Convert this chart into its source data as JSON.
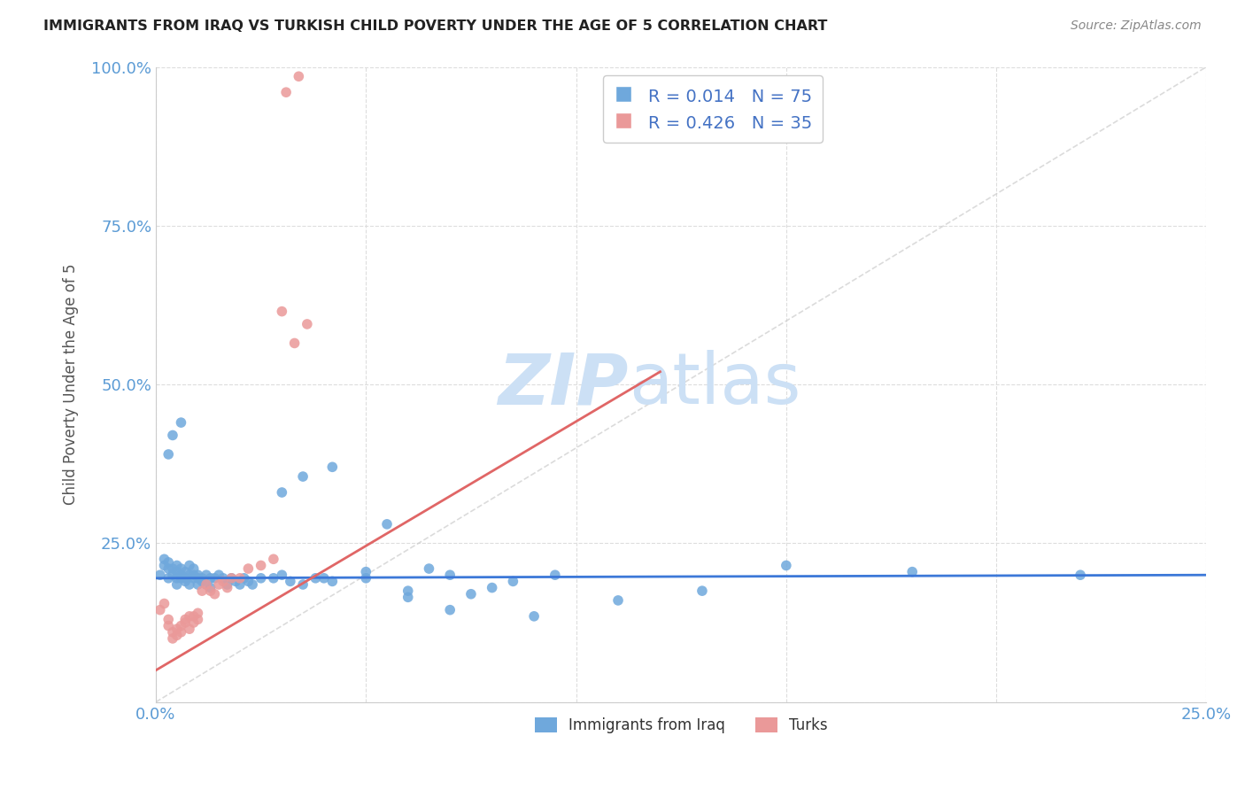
{
  "title": "IMMIGRANTS FROM IRAQ VS TURKISH CHILD POVERTY UNDER THE AGE OF 5 CORRELATION CHART",
  "source": "Source: ZipAtlas.com",
  "ylabel": "Child Poverty Under the Age of 5",
  "xlim": [
    0.0,
    0.25
  ],
  "ylim": [
    0.0,
    1.0
  ],
  "x_ticks": [
    0.0,
    0.25
  ],
  "x_tick_labels": [
    "0.0%",
    "25.0%"
  ],
  "y_ticks": [
    0.0,
    0.25,
    0.5,
    0.75,
    1.0
  ],
  "y_tick_labels": [
    "",
    "25.0%",
    "50.0%",
    "75.0%",
    "100.0%"
  ],
  "iraq_color": "#6fa8dc",
  "turks_color": "#ea9999",
  "line_iraq_color": "#3c78d8",
  "line_turks_color": "#e06666",
  "diagonal_color": "#cccccc",
  "watermark_zip": "ZIP",
  "watermark_atlas": "atlas",
  "watermark_color": "#cce0f5",
  "grid_color": "#dddddd",
  "title_color": "#222222",
  "source_color": "#888888",
  "axis_label_color": "#555555",
  "tick_color": "#5b9bd5",
  "legend_color": "#4472c4",
  "iraq_line_x0": 0.0,
  "iraq_line_y0": 0.195,
  "iraq_line_x1": 0.25,
  "iraq_line_y1": 0.2,
  "turks_line_x0": 0.0,
  "turks_line_y0": 0.05,
  "turks_line_x1": 0.12,
  "turks_line_y1": 0.52,
  "iraq_scatter_x": [
    0.001,
    0.002,
    0.002,
    0.003,
    0.003,
    0.003,
    0.004,
    0.004,
    0.005,
    0.005,
    0.005,
    0.005,
    0.006,
    0.006,
    0.006,
    0.007,
    0.007,
    0.007,
    0.008,
    0.008,
    0.008,
    0.009,
    0.009,
    0.009,
    0.01,
    0.01,
    0.01,
    0.011,
    0.011,
    0.012,
    0.012,
    0.013,
    0.013,
    0.014,
    0.015,
    0.016,
    0.017,
    0.018,
    0.019,
    0.02,
    0.021,
    0.022,
    0.023,
    0.025,
    0.028,
    0.03,
    0.032,
    0.035,
    0.038,
    0.04,
    0.042,
    0.05,
    0.055,
    0.06,
    0.065,
    0.07,
    0.075,
    0.08,
    0.085,
    0.095,
    0.11,
    0.13,
    0.15,
    0.18,
    0.22,
    0.03,
    0.035,
    0.042,
    0.05,
    0.06,
    0.07,
    0.09,
    0.003,
    0.004,
    0.006
  ],
  "iraq_scatter_y": [
    0.2,
    0.225,
    0.215,
    0.21,
    0.22,
    0.195,
    0.21,
    0.2,
    0.205,
    0.195,
    0.215,
    0.185,
    0.2,
    0.195,
    0.21,
    0.19,
    0.205,
    0.195,
    0.2,
    0.185,
    0.215,
    0.195,
    0.2,
    0.21,
    0.195,
    0.185,
    0.2,
    0.19,
    0.195,
    0.185,
    0.2,
    0.195,
    0.18,
    0.195,
    0.2,
    0.195,
    0.185,
    0.195,
    0.19,
    0.185,
    0.195,
    0.19,
    0.185,
    0.195,
    0.195,
    0.2,
    0.19,
    0.185,
    0.195,
    0.195,
    0.19,
    0.205,
    0.28,
    0.175,
    0.21,
    0.2,
    0.17,
    0.18,
    0.19,
    0.2,
    0.16,
    0.175,
    0.215,
    0.205,
    0.2,
    0.33,
    0.355,
    0.37,
    0.195,
    0.165,
    0.145,
    0.135,
    0.39,
    0.42,
    0.44
  ],
  "turks_scatter_x": [
    0.001,
    0.002,
    0.003,
    0.003,
    0.004,
    0.004,
    0.005,
    0.005,
    0.006,
    0.006,
    0.007,
    0.007,
    0.008,
    0.008,
    0.009,
    0.009,
    0.01,
    0.01,
    0.011,
    0.012,
    0.013,
    0.014,
    0.015,
    0.016,
    0.017,
    0.018,
    0.02,
    0.022,
    0.025,
    0.028,
    0.033,
    0.036,
    0.03,
    0.031,
    0.034
  ],
  "turks_scatter_y": [
    0.145,
    0.155,
    0.13,
    0.12,
    0.11,
    0.1,
    0.115,
    0.105,
    0.11,
    0.12,
    0.125,
    0.13,
    0.135,
    0.115,
    0.125,
    0.135,
    0.13,
    0.14,
    0.175,
    0.185,
    0.175,
    0.17,
    0.185,
    0.19,
    0.18,
    0.195,
    0.195,
    0.21,
    0.215,
    0.225,
    0.565,
    0.595,
    0.615,
    0.96,
    0.985
  ]
}
